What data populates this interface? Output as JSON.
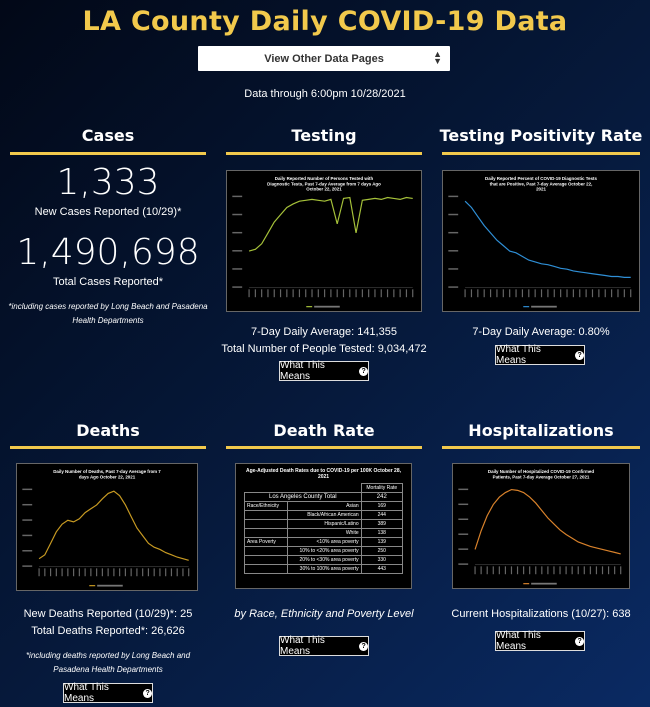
{
  "page": {
    "title": "LA County Daily COVID-19 Data",
    "select_label": "View Other Data Pages",
    "data_through": "Data through 6:00pm 10/28/2021"
  },
  "cases": {
    "heading": "Cases",
    "new_count": "1,333",
    "new_label": "New Cases Reported (10/29)*",
    "total_count": "1,490,698",
    "total_label": "Total Cases Reported*",
    "note": "*including cases reported by Long Beach and Pasadena Health Departments"
  },
  "testing": {
    "heading": "Testing",
    "chart_title": "Daily Reported Number of Persons Tested with Diagnostic Tests, Past 7-day Average from 7 days Ago October 22, 2021",
    "avg": "7-Day Daily Average: 141,355",
    "total": "Total Number of People Tested: 9,034,472",
    "button": "What This Means"
  },
  "positivity": {
    "heading": "Testing Positivity Rate",
    "chart_title": "Daily Reported Percent of COVID-19 Diagnostic Tests that are Positive, Past 7-day Average October 22, 2021",
    "avg": "7-Day Daily Average: 0.80%",
    "button": "What This Means"
  },
  "deaths": {
    "heading": "Deaths",
    "chart_title": "Daily Number of Deaths, Past 7-day Average from 7 days Ago October 22, 2021",
    "new": "New Deaths Reported (10/29)*: 25",
    "total": "Total Deaths Reported*: 26,626",
    "note": "*including deaths reported by Long Beach and Pasadena Health Departments",
    "button": "What This Means"
  },
  "death_rate": {
    "heading": "Death Rate",
    "table_title": "Age-Adjusted Death Rates due to COVID-19 per 100K October 28, 2021",
    "col_header": "Mortality Rate",
    "county_label": "Los Angeles County Total",
    "county_value": "242",
    "rows": [
      {
        "group": "Race/Ethnicity",
        "label": "Asian",
        "value": "169"
      },
      {
        "group": "",
        "label": "Black/African American",
        "value": "244"
      },
      {
        "group": "",
        "label": "Hispanic/Latino",
        "value": "389"
      },
      {
        "group": "",
        "label": "White",
        "value": "138"
      },
      {
        "group": "Area Poverty",
        "label": "<10% area poverty",
        "value": "139"
      },
      {
        "group": "",
        "label": "10% to <20% area poverty",
        "value": "250"
      },
      {
        "group": "",
        "label": "20% to <30% area poverty",
        "value": "330"
      },
      {
        "group": "",
        "label": "30% to 100% area poverty",
        "value": "443"
      }
    ],
    "caption": "by Race, Ethnicity and Poverty Level",
    "button": "What This Means"
  },
  "hospitalizations": {
    "heading": "Hospitalizations",
    "chart_title": "Daily Number of Hospitalized COVID-19 Confirmed Patients, Past 7-day Average October 27, 2021",
    "current": "Current Hospitalizations (10/27): 638",
    "button": "What This Means"
  },
  "colors": {
    "accent": "#f2c94c",
    "testing_line": "#a6c23a",
    "positivity_line": "#2f8fd6",
    "deaths_line": "#c79a22",
    "hosp_line": "#d9822b"
  },
  "chart_data": [
    {
      "type": "line",
      "title": "Daily Reported Number of Persons Tested with Diagnostic Tests, Past 7-day Average from 7 days Ago October 22, 2021",
      "series": [
        {
          "values": [
            40,
            42,
            48,
            60,
            72,
            80,
            88,
            92,
            95,
            96,
            97,
            96,
            95,
            97,
            70,
            98,
            99,
            60,
            96,
            97,
            98,
            97,
            99,
            98,
            97,
            99,
            98
          ]
        }
      ]
    },
    {
      "type": "line",
      "title": "Daily Reported Percent of COVID-19 Diagnostic Tests that are Positive, Past 7-day Average October 22, 2021",
      "series": [
        {
          "values": [
            95,
            88,
            78,
            68,
            60,
            52,
            46,
            40,
            38,
            34,
            30,
            28,
            26,
            25,
            23,
            21,
            20,
            18,
            17,
            16,
            15,
            14,
            13,
            12,
            12,
            11,
            11
          ]
        }
      ]
    },
    {
      "type": "line",
      "title": "Daily Number of Deaths, Past 7-day Average from 7 days Ago October 22, 2021",
      "series": [
        {
          "values": [
            10,
            15,
            30,
            45,
            55,
            60,
            58,
            62,
            70,
            75,
            80,
            88,
            95,
            98,
            92,
            80,
            65,
            50,
            40,
            30,
            25,
            22,
            18,
            15,
            12,
            10,
            8
          ]
        }
      ]
    },
    {
      "type": "line",
      "title": "Daily Number of Hospitalized COVID-19 Confirmed Patients, Past 7-day Average October 27, 2021",
      "series": [
        {
          "values": [
            20,
            45,
            65,
            80,
            90,
            96,
            100,
            99,
            96,
            90,
            82,
            72,
            62,
            54,
            46,
            40,
            35,
            30,
            27,
            24,
            22,
            20,
            18,
            16,
            14
          ]
        }
      ]
    }
  ]
}
